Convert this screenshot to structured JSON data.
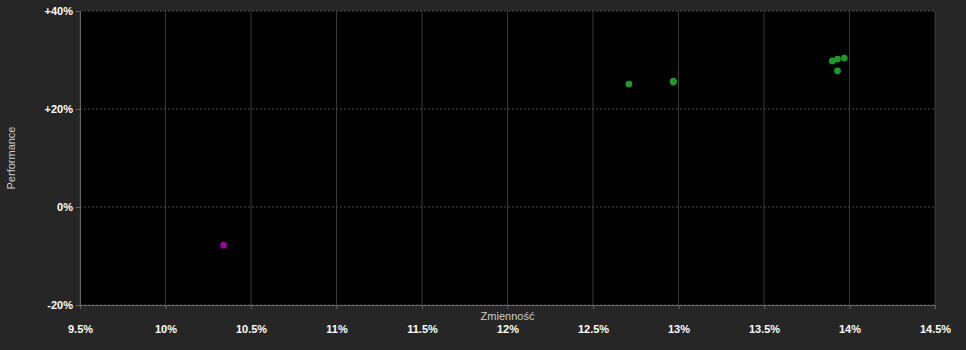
{
  "chart_data": {
    "type": "scatter",
    "x_label": "Zmienność",
    "y_label": "Performance",
    "x": [
      10.34,
      12.71,
      12.97,
      12.97,
      13.9,
      13.93,
      13.97,
      13.93
    ],
    "values": [
      -7.8,
      25.1,
      25.7,
      25.5,
      29.8,
      30.2,
      30.4,
      27.8
    ],
    "colors": [
      "#990099",
      "#1f9a28",
      "#1f9a28",
      "#1f9a28",
      "#1f9a28",
      "#1f9a28",
      "#1f9a28",
      "#1f9a28"
    ],
    "marker": "circle",
    "xlim": [
      9.5,
      14.5
    ],
    "xticks": [
      {
        "value": 9.5,
        "label": "9.5%"
      },
      {
        "value": 10,
        "label": "10%"
      },
      {
        "value": 10.5,
        "label": "10.5%"
      },
      {
        "value": 11,
        "label": "11%"
      },
      {
        "value": 11.5,
        "label": "11.5%"
      },
      {
        "value": 12,
        "label": "12%"
      },
      {
        "value": 12.5,
        "label": "12.5%"
      },
      {
        "value": 13,
        "label": "13%"
      },
      {
        "value": 13.5,
        "label": "13.5%"
      },
      {
        "value": 14,
        "label": "14%"
      },
      {
        "value": 14.5,
        "label": "14.5%"
      }
    ],
    "ylim": [
      -20,
      40
    ],
    "yticks": [
      {
        "value": -20,
        "label": "-20%"
      },
      {
        "value": 0,
        "label": "0%"
      },
      {
        "value": 20,
        "label": "+20%"
      },
      {
        "value": 40,
        "label": "+40%"
      }
    ],
    "grid": true
  }
}
